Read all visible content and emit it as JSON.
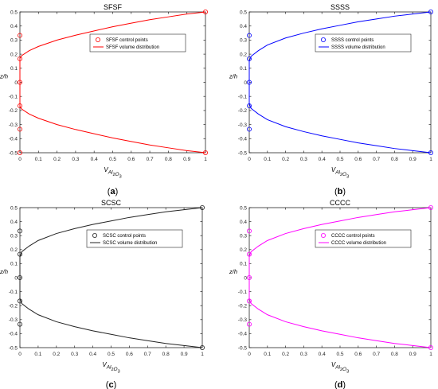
{
  "chart_data": [
    {
      "type": "line",
      "panel_label": "(a)",
      "title": "SFSF",
      "xlabel": "V_Al2O3",
      "ylabel": "z/h",
      "xlim": [
        0,
        1
      ],
      "ylim": [
        -0.5,
        0.5
      ],
      "xticks": [
        "0",
        "0.1",
        "0.2",
        "0.3",
        "0.4",
        "0.5",
        "0.6",
        "0.7",
        "0.8",
        "0.9",
        "1"
      ],
      "yticks": [
        "-0.5",
        "-0.4",
        "-0.3",
        "-0.2",
        "-0.1",
        "0",
        "0.1",
        "0.2",
        "0.3",
        "0.4",
        "0.5"
      ],
      "grid": false,
      "legend_position": "top-right",
      "color": "#ff0000",
      "series": [
        {
          "name": "SFSF control points",
          "kind": "markers",
          "points": [
            [
              0,
              -0.5
            ],
            [
              0,
              -0.333
            ],
            [
              0,
              -0.167
            ],
            [
              0,
              0
            ],
            [
              0,
              0.167
            ],
            [
              0,
              0.333
            ],
            [
              1,
              0.5
            ],
            [
              1,
              -0.5
            ]
          ]
        },
        {
          "name": "SFSF volume distribution",
          "kind": "line",
          "x": [
            0,
            0.01,
            0.05,
            0.1,
            0.2,
            0.3,
            0.4,
            0.5,
            0.6,
            0.7,
            0.8,
            0.9,
            1
          ],
          "y": [
            0.17,
            0.19,
            0.225,
            0.255,
            0.3,
            0.335,
            0.365,
            0.395,
            0.42,
            0.445,
            0.465,
            0.485,
            0.5
          ]
        }
      ]
    },
    {
      "type": "line",
      "panel_label": "(b)",
      "title": "SSSS",
      "xlabel": "V_Al2O3",
      "ylabel": "z/h",
      "xlim": [
        0,
        1
      ],
      "ylim": [
        -0.5,
        0.5
      ],
      "xticks": [
        "0",
        "0.1",
        "0.2",
        "0.3",
        "0.4",
        "0.5",
        "0.6",
        "0.7",
        "0.8",
        "0.9",
        "1"
      ],
      "yticks": [
        "-0.5",
        "-0.4",
        "-0.3",
        "-0.2",
        "-0.1",
        "0",
        "0.1",
        "0.2",
        "0.3",
        "0.4",
        "0.5"
      ],
      "grid": false,
      "legend_position": "top-right",
      "color": "#0000ff",
      "series": [
        {
          "name": "SSSS control points",
          "kind": "markers",
          "points": [
            [
              0,
              -0.333
            ],
            [
              0,
              -0.167
            ],
            [
              0,
              0
            ],
            [
              0,
              0.167
            ],
            [
              0,
              0.333
            ],
            [
              1,
              0.5
            ],
            [
              1,
              -0.5
            ]
          ]
        },
        {
          "name": "SSSS volume distribution",
          "kind": "line",
          "x": [
            0,
            0.01,
            0.05,
            0.1,
            0.2,
            0.3,
            0.4,
            0.5,
            0.6,
            0.7,
            0.8,
            0.9,
            1
          ],
          "y": [
            0.15,
            0.185,
            0.225,
            0.265,
            0.315,
            0.35,
            0.38,
            0.405,
            0.43,
            0.45,
            0.47,
            0.485,
            0.5
          ]
        }
      ]
    },
    {
      "type": "line",
      "panel_label": "(c)",
      "title": "SCSC",
      "xlabel": "V_Al2O3",
      "ylabel": "z/h",
      "xlim": [
        0,
        1
      ],
      "ylim": [
        -0.5,
        0.5
      ],
      "xticks": [
        "0",
        "0.1",
        "0.2",
        "0.3",
        "0.4",
        "0.5",
        "0.6",
        "0.7",
        "0.8",
        "0.9",
        "1"
      ],
      "yticks": [
        "-0.5",
        "-0.4",
        "-0.3",
        "-0.2",
        "-0.1",
        "0",
        "0.1",
        "0.2",
        "0.3",
        "0.4",
        "0.5"
      ],
      "grid": false,
      "legend_position": "top-right",
      "color": "#222222",
      "series": [
        {
          "name": "SCSC control points",
          "kind": "markers",
          "points": [
            [
              0,
              -0.333
            ],
            [
              0,
              -0.167
            ],
            [
              0,
              0
            ],
            [
              0,
              0.167
            ],
            [
              0,
              0.333
            ],
            [
              1,
              0.5
            ],
            [
              1,
              -0.5
            ]
          ]
        },
        {
          "name": "SCSC volume distribution",
          "kind": "line",
          "x": [
            0,
            0.01,
            0.05,
            0.1,
            0.2,
            0.3,
            0.4,
            0.5,
            0.6,
            0.7,
            0.8,
            0.9,
            1
          ],
          "y": [
            0.15,
            0.185,
            0.225,
            0.265,
            0.315,
            0.35,
            0.38,
            0.405,
            0.43,
            0.45,
            0.47,
            0.485,
            0.5
          ]
        }
      ]
    },
    {
      "type": "line",
      "panel_label": "(d)",
      "title": "CCCC",
      "xlabel": "V_Al2O3",
      "ylabel": "z/h",
      "xlim": [
        0,
        1
      ],
      "ylim": [
        -0.5,
        0.5
      ],
      "xticks": [
        "0",
        "0.1",
        "0.2",
        "0.3",
        "0.4",
        "0.5",
        "0.6",
        "0.7",
        "0.8",
        "0.9",
        "1"
      ],
      "yticks": [
        "-0.5",
        "-0.4",
        "-0.3",
        "-0.2",
        "-0.1",
        "0",
        "0.1",
        "0.2",
        "0.3",
        "0.4",
        "0.5"
      ],
      "grid": false,
      "legend_position": "top-right",
      "color": "#ff00ff",
      "series": [
        {
          "name": "CCCC control points",
          "kind": "markers",
          "points": [
            [
              0,
              -0.333
            ],
            [
              0,
              -0.167
            ],
            [
              0,
              0
            ],
            [
              0,
              0.167
            ],
            [
              0,
              0.333
            ],
            [
              1,
              0.5
            ],
            [
              1,
              -0.5
            ]
          ]
        },
        {
          "name": "CCCC volume distribution",
          "kind": "line",
          "x": [
            0,
            0.01,
            0.05,
            0.1,
            0.2,
            0.3,
            0.4,
            0.5,
            0.6,
            0.7,
            0.8,
            0.9,
            1
          ],
          "y": [
            0.15,
            0.185,
            0.225,
            0.265,
            0.315,
            0.35,
            0.38,
            0.405,
            0.43,
            0.45,
            0.47,
            0.485,
            0.5
          ]
        }
      ]
    }
  ]
}
